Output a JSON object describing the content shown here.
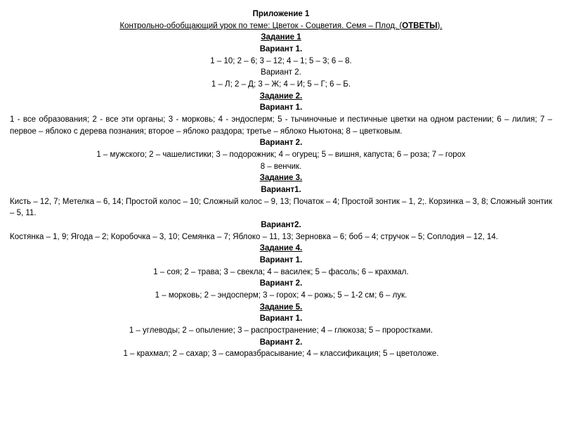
{
  "header": {
    "appendix": "Приложение 1",
    "title_prefix": "Контрольно-обобщающий урок по теме:  Цветок - Соцветия. Семя – Плод. (",
    "title_answers": "ОТВЕТЫ",
    "title_suffix": ")."
  },
  "task1": {
    "heading": "Задание 1",
    "v1_heading": "Вариант 1.",
    "v1_line": "1 – 10; 2 – 6; 3 – 12; 4 – 1; 5 – 3; 6 – 8.",
    "v2_heading": "Вариант 2.",
    "v2_line": "1 – Л; 2 – Д; 3 – Ж; 4 – И; 5 – Г; 6 – Б."
  },
  "task2": {
    "heading": "Задание 2.",
    "v1_heading": "Вариант 1.",
    "v1_line1": "1 - все образования; 2 - все эти органы; 3 - морковь; 4 - эндосперм; 5 - тычиночные и пестичные цветки на одном растении; 6 – лилия; 7 – первое – яблоко с дерева познания; второе – яблоко раздора; третье – яблоко Ньютона; 8 – цветковым.",
    "v2_heading": "Вариант 2.",
    "v2_line1": "1 – мужского; 2 – чашелистики; 3 – подорожник; 4 – огурец; 5 – вишня, капуста; 6 – роза; 7 – горох",
    "v2_line2": "8 – венчик."
  },
  "task3": {
    "heading": "Задание 3.",
    "v1_heading": "Вариант1.",
    "v1_line1": "Кисть – 12, 7; Метелка – 6, 14; Простой колос – 10; Сложный колос – 9, 13; Початок – 4; Простой зонтик – 1, 2;. Корзинка – 3, 8; Сложный зонтик – 5, 11.",
    "v2_heading": "Вариант2.",
    "v2_line1": "Костянка – 1, 9; Ягода – 2;  Коробочка – 3, 10; Семянка – 7; Яблоко – 11, 13; Зерновка – 6; боб – 4; стручок – 5; Соплодия – 12, 14."
  },
  "task4": {
    "heading": "Задание 4.",
    "v1_heading": "Вариант 1.",
    "v1_line": "1 – соя; 2 – трава; 3 – свекла; 4 – василек; 5 – фасоль; 6 – крахмал.",
    "v2_heading": "Вариант 2.",
    "v2_line": "1 – морковь; 2 – эндосперм; 3 – горох; 4 – рожь; 5 – 1-2 см; 6 – лук."
  },
  "task5": {
    "heading": "Задание 5.",
    "v1_heading": "Вариант 1.",
    "v1_line": "1 – углеводы; 2 – опыление; 3 – распространение; 4 – глюкоза; 5 – проростками.",
    "v2_heading": "Вариант 2.",
    "v2_line": "1 – крахмал; 2 – сахар; 3 – саморазбрасывание; 4 – классификация; 5 – цветоложе."
  },
  "style": {
    "text_color": "#000000",
    "background_color": "#ffffff",
    "font_family": "Arial",
    "font_size_pt": 9,
    "line_height": 1.45
  }
}
